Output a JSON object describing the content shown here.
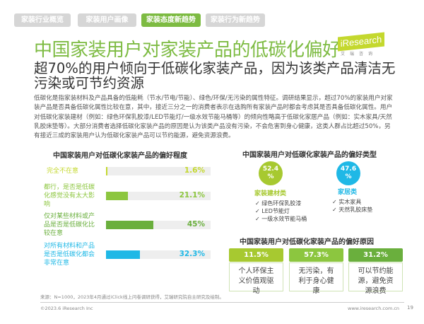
{
  "tabs": [
    "家装行业概览",
    "家装用户画像",
    "家装态度新趋势",
    "家装行为新趋势"
  ],
  "title": "中国家装用户对家装产品的低碳化偏好",
  "logo": {
    "name": "iResearch",
    "sub": "艾瑞咨询"
  },
  "subtitle": "超70%的用户倾向于低碳化家装产品，因为该类产品清洁无污染或可节约资源",
  "body": "低碳化是指家装材料及产品具备的低能耗（节水/节电/节能）、绿色/环保/无污染的属性特征。调研结果显示，超过70%的家装用户对家装产品是否具备低碳化属性比较在意，其中，接近三分之一的消费者表示在选购所有家装产品时都会考虑其是否具备低碳化属性。用户对低碳化家装建材（例如：绿色环保乳胶漆/LED节能灯/一级水效节能马桶等）的倾向性略高于低碳化家居产品（例如：实木家具/天然乳胶床垫等）。大部分消费者选择低碳化家装产品的原因是认为该类产品没有污染，不会危害到身心健康，这类人群占比超过50%，另有接近三成的家装用户认为低碳化家装产品可以节约能源，避免资源浪费。",
  "degree": {
    "title": "中国家装用户对低碳化家装产品的偏好程度",
    "rows": [
      {
        "label": "完全不在意",
        "value": 1.6,
        "text": "1.6%",
        "color": "#c4d82e"
      },
      {
        "label": "都行，是否是低碳化感觉没有太大影响",
        "value": 21.1,
        "text": "21.1%",
        "color": "#8cc63f"
      },
      {
        "label": "仅对某些材料或产品是否是低碳化比较在意",
        "value": 45,
        "text": "45%",
        "color": "#6aaf3d"
      },
      {
        "label": "对所有材料和产品是否是低碳化都会非常在意",
        "value": 32.3,
        "text": "32.3%",
        "color": "#1fb8e6"
      }
    ]
  },
  "types": {
    "title": "中国家装用户对低碳化家装产品的偏好类型",
    "a": {
      "pct": "52.4 %",
      "name": "家装建材类",
      "items": [
        "绿色环保乳胶漆",
        "LED节能灯",
        "一级水效节能马桶"
      ],
      "color": "#a7c930"
    },
    "b": {
      "pct": "47.6 %",
      "name": "家居类",
      "items": [
        "实木家具",
        "天然乳胶床垫"
      ],
      "color": "#1fb8e6"
    },
    "check": "✓"
  },
  "reasons": {
    "title": "中国家装用户对低碳化家装产品的偏好原因",
    "items": [
      {
        "pct": "11.5%",
        "text": "个人环保主义价值观驱动",
        "color": "#a7c930"
      },
      {
        "pct": "57.3%",
        "text": "无污染，有利于身心健康",
        "color": "#8cc63f"
      },
      {
        "pct": "31.2%",
        "text": "可以节约能源，避免资源浪费",
        "color": "#6aaf3d"
      }
    ]
  },
  "source": "来源：N=1000，2023年4月通过iClick线上问卷调研获得，艾瑞研究院自主研究及绘制。",
  "footer": {
    "copyright": "©2023.6 iResearch Inc",
    "url": "www.iresearch.com.cn",
    "page": "19"
  }
}
